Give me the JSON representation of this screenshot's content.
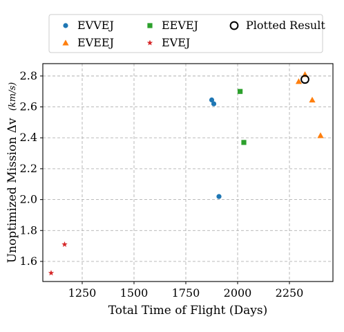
{
  "chart_data": {
    "type": "scatter",
    "xlabel": "Total Time of Flight (Days)",
    "ylabel": "Unoptimized Mission Δv (km/s)",
    "ylabel_main": "Unoptimized Mission Δv",
    "ylabel_unit": "(km/s)",
    "xlim": [
      1060,
      2460
    ],
    "ylim": [
      1.47,
      2.88
    ],
    "xticks": [
      1250,
      1500,
      1750,
      2000,
      2250
    ],
    "yticks": [
      1.6,
      1.8,
      2.0,
      2.2,
      2.4,
      2.6,
      2.8
    ],
    "xtick_labels": [
      "1250",
      "1500",
      "1750",
      "2000",
      "2250"
    ],
    "ytick_labels": [
      "1.6",
      "1.8",
      "2.0",
      "2.2",
      "2.4",
      "2.6",
      "2.8"
    ],
    "grid": true,
    "legend_placement": "top-center, above plot",
    "series": [
      {
        "name": "EVVEJ",
        "marker": "circle",
        "color": "#1f77b4",
        "points": [
          [
            1875,
            2.645
          ],
          [
            1885,
            2.62
          ],
          [
            1910,
            2.02
          ]
        ]
      },
      {
        "name": "EEVEJ",
        "marker": "square",
        "color": "#2ca02c",
        "points": [
          [
            2012,
            2.7
          ],
          [
            2030,
            2.37
          ]
        ]
      },
      {
        "name": "EVEEJ",
        "marker": "triangle",
        "color": "#ff7f0e",
        "points": [
          [
            2295,
            2.765
          ],
          [
            2325,
            2.81
          ],
          [
            2360,
            2.645
          ],
          [
            2400,
            2.415
          ]
        ]
      },
      {
        "name": "EVEJ",
        "marker": "star",
        "color": "#d62728",
        "points": [
          [
            1100,
            1.525
          ],
          [
            1165,
            1.71
          ]
        ]
      },
      {
        "name": "Plotted Result",
        "marker": "open-circle",
        "color": "#000000",
        "points": [
          [
            2325,
            2.778
          ]
        ]
      }
    ]
  }
}
